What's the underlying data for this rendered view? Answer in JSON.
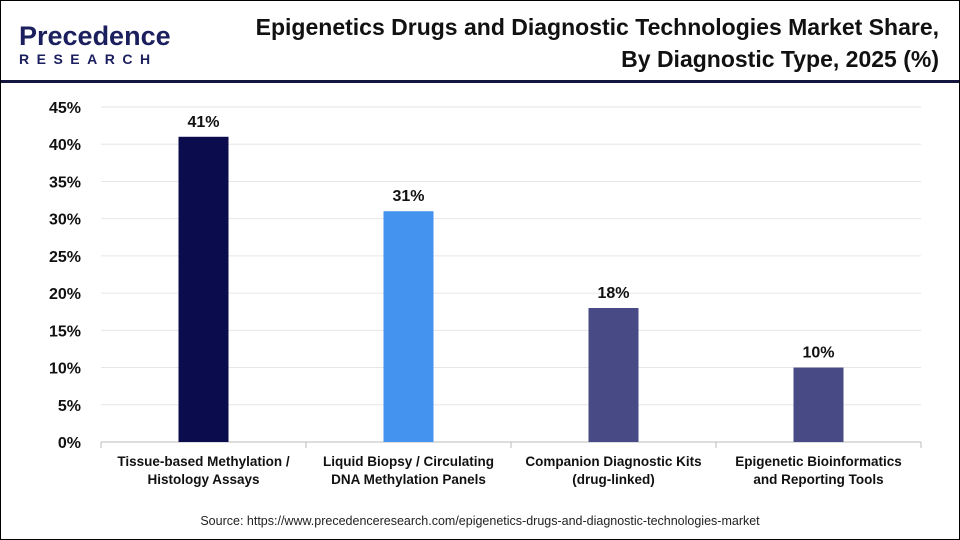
{
  "header": {
    "logo_text": "Precedence",
    "logo_sub": "RESEARCH",
    "title_line1": "Epigenetics Drugs and Diagnostic Technologies Market Share,",
    "title_line2": "By Diagnostic Type, 2025 (%)"
  },
  "chart_data": {
    "type": "bar",
    "title": "Epigenetics Drugs and Diagnostic Technologies Market Share, By Diagnostic Type, 2025 (%)",
    "categories": [
      [
        "Tissue-based Methylation /",
        "Histology Assays"
      ],
      [
        "Liquid Biopsy / Circulating",
        "DNA Methylation Panels"
      ],
      [
        "Companion Diagnostic Kits",
        "(drug-linked)"
      ],
      [
        "Epigenetic Bioinformatics",
        "and Reporting Tools"
      ]
    ],
    "values": [
      41,
      31,
      18,
      10
    ],
    "data_labels": [
      "41%",
      "31%",
      "18%",
      "10%"
    ],
    "colors": [
      "#0b0c4e",
      "#4393ef",
      "#474a85",
      "#474a85"
    ],
    "ylim": [
      0,
      45
    ],
    "yticks": [
      "0%",
      "5%",
      "10%",
      "15%",
      "20%",
      "25%",
      "30%",
      "35%",
      "40%",
      "45%"
    ],
    "grid": true,
    "legend": "none"
  },
  "source": "Source: https://www.precedenceresearch.com/epigenetics-drugs-and-diagnostic-technologies-market"
}
